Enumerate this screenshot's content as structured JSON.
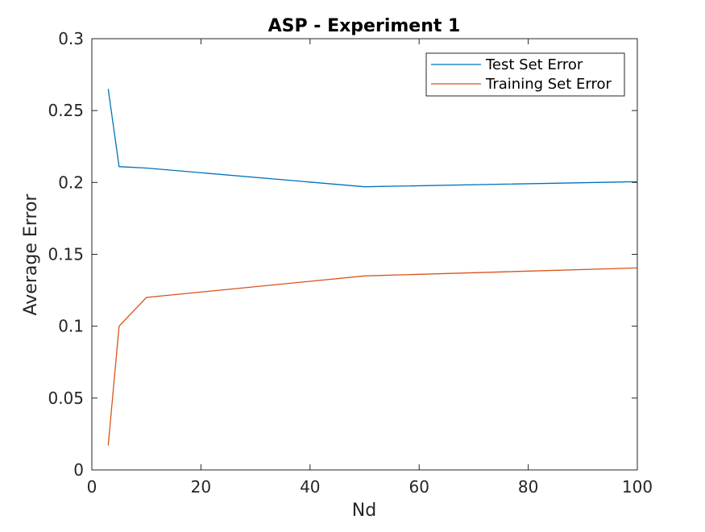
{
  "chart_data": {
    "type": "line",
    "title": "ASP - Experiment 1",
    "xlabel": "Nd",
    "ylabel": "Average Error",
    "xlim": [
      0,
      100
    ],
    "ylim": [
      0,
      0.3
    ],
    "xticks": [
      0,
      20,
      40,
      60,
      80,
      100
    ],
    "xtick_labels": [
      "0",
      "20",
      "40",
      "60",
      "80",
      "100"
    ],
    "yticks": [
      0,
      0.05,
      0.1,
      0.15,
      0.2,
      0.25,
      0.3
    ],
    "ytick_labels": [
      "0",
      "0.05",
      "0.1",
      "0.15",
      "0.2",
      "0.25",
      "0.3"
    ],
    "grid": false,
    "legend_position": "top-right",
    "series": [
      {
        "name": "Test Set Error",
        "color": "#0072BD",
        "x": [
          3,
          5,
          10,
          50,
          100
        ],
        "y": [
          0.265,
          0.211,
          0.21,
          0.197,
          0.2005
        ]
      },
      {
        "name": "Training Set Error",
        "color": "#D95319",
        "x": [
          3,
          5,
          10,
          50,
          100
        ],
        "y": [
          0.017,
          0.1,
          0.12,
          0.135,
          0.1405
        ]
      }
    ]
  }
}
